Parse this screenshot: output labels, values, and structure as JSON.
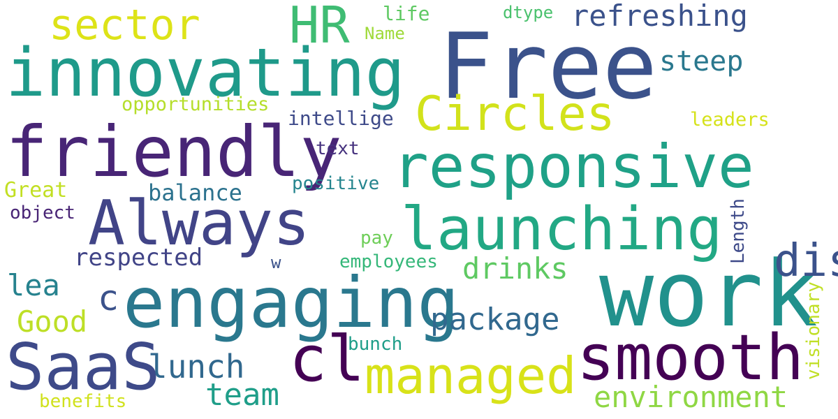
{
  "words": [
    {
      "text": "Free",
      "color": "#3b528b"
    },
    {
      "text": "work",
      "color": "#21918c"
    },
    {
      "text": "innovating",
      "color": "#1f9a8a"
    },
    {
      "text": "friendly",
      "color": "#482576"
    },
    {
      "text": "responsive",
      "color": "#1fa187"
    },
    {
      "text": "engaging",
      "color": "#2a788e"
    },
    {
      "text": "launching",
      "color": "#22a884"
    },
    {
      "text": "Always",
      "color": "#414487"
    },
    {
      "text": "smooth",
      "color": "#440154"
    },
    {
      "text": "Circles",
      "color": "#d2e21b"
    },
    {
      "text": "cl",
      "color": "#440154"
    },
    {
      "text": "SaaS",
      "color": "#3e4a89"
    },
    {
      "text": "managed",
      "color": "#d8e219"
    },
    {
      "text": "HR",
      "color": "#3fbc73"
    },
    {
      "text": "sector",
      "color": "#dde318"
    },
    {
      "text": "disrupt",
      "color": "#3b528b"
    },
    {
      "text": "refreshing",
      "color": "#3b528b"
    },
    {
      "text": "environment",
      "color": "#8fd744"
    },
    {
      "text": "package",
      "color": "#31688e"
    },
    {
      "text": "lunch",
      "color": "#31688e"
    },
    {
      "text": "team",
      "color": "#1f9e89"
    },
    {
      "text": "drinks",
      "color": "#5ec962"
    },
    {
      "text": "Good",
      "color": "#bddf26"
    },
    {
      "text": "lea",
      "color": "#26828e"
    },
    {
      "text": "steep",
      "color": "#2a788e"
    },
    {
      "text": "c",
      "color": "#3b528b"
    },
    {
      "text": "respected",
      "color": "#414487"
    },
    {
      "text": "balance",
      "color": "#2c728e"
    },
    {
      "text": "Great",
      "color": "#c2df23"
    },
    {
      "text": "positive",
      "color": "#25858e"
    },
    {
      "text": "intellige",
      "color": "#3e4a89"
    },
    {
      "text": "text",
      "color": "#46327e"
    },
    {
      "text": "object",
      "color": "#482475"
    },
    {
      "text": "opportunities",
      "color": "#b5de2b"
    },
    {
      "text": "leaders",
      "color": "#d5e21a"
    },
    {
      "text": "employees",
      "color": "#35b779"
    },
    {
      "text": "pay",
      "color": "#6ece58"
    },
    {
      "text": "w",
      "color": "#3b528b"
    },
    {
      "text": "bunch",
      "color": "#1f9e89"
    },
    {
      "text": "benefits",
      "color": "#d0e11c"
    },
    {
      "text": "life",
      "color": "#5ec962"
    },
    {
      "text": "Name",
      "color": "#9fda3a"
    },
    {
      "text": "dtype",
      "color": "#4ac16d"
    },
    {
      "text": "Length",
      "color": "#3e4a89"
    },
    {
      "text": "visionary",
      "color": "#c0df25"
    }
  ]
}
